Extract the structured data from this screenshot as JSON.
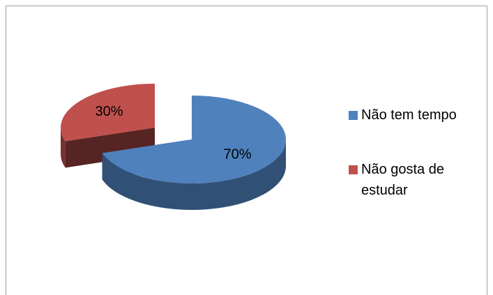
{
  "chart_data": {
    "type": "pie3d",
    "categories": [
      "Não tem tempo",
      "Não gosta de estudar"
    ],
    "values": [
      70,
      30
    ],
    "value_labels": [
      "70%",
      "30%"
    ],
    "colors": [
      "#4f81bd",
      "#c0504d"
    ],
    "legend": "right"
  }
}
